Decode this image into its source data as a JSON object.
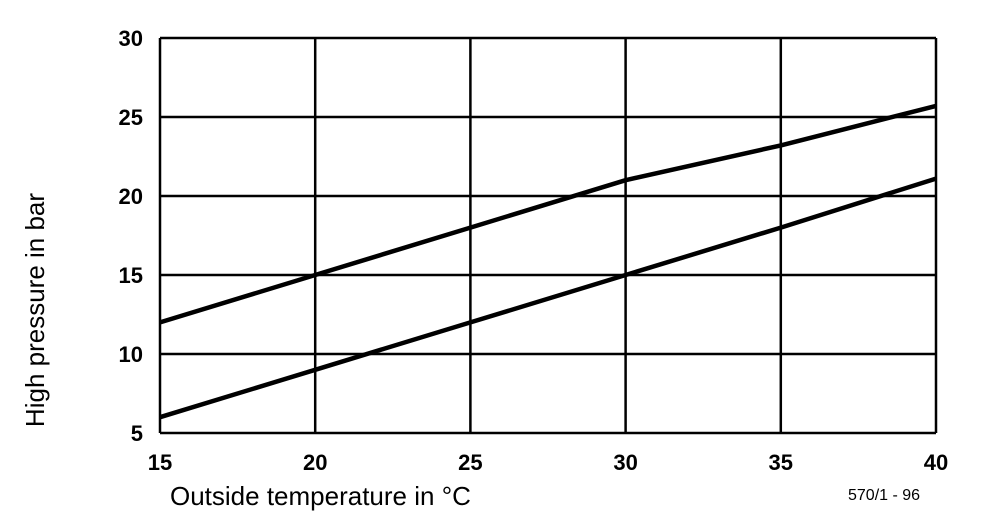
{
  "chart_data": {
    "type": "line",
    "title": "",
    "xlabel": "Outside temperature in °C",
    "ylabel": "High pressure in bar",
    "xlim": [
      15,
      40
    ],
    "ylim": [
      5,
      30
    ],
    "xticks": [
      15,
      20,
      25,
      30,
      35,
      40
    ],
    "yticks": [
      5,
      10,
      15,
      20,
      25,
      30
    ],
    "grid": true,
    "series": [
      {
        "x": [
          15,
          20,
          25,
          30,
          35,
          40
        ],
        "y": [
          12,
          15,
          18,
          21,
          23.2,
          25.7
        ]
      },
      {
        "x": [
          15,
          20,
          25,
          30,
          35,
          40
        ],
        "y": [
          6,
          9,
          12,
          15,
          18,
          21.1
        ]
      }
    ],
    "annotation": "570/1 - 96"
  }
}
